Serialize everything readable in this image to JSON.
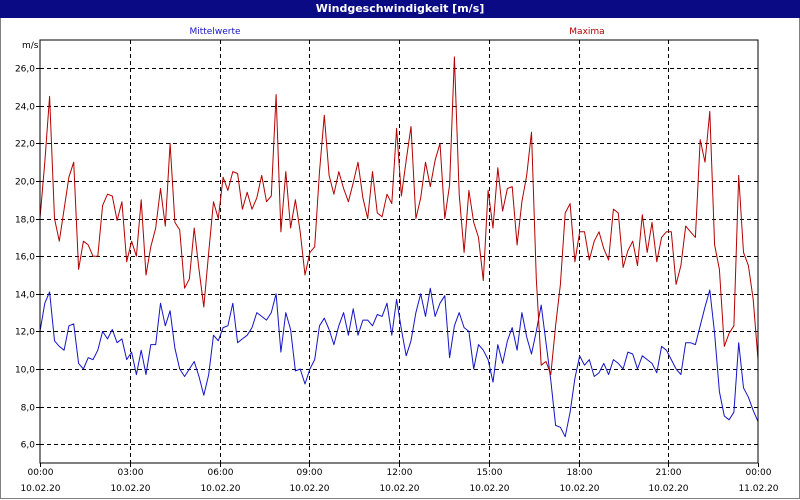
{
  "window": {
    "title": "Windgeschwindigkeit [m/s]"
  },
  "colors": {
    "mean": "#1414c8",
    "max": "#b40000",
    "title_bg": "#0a0a84",
    "grid": "#000000"
  },
  "chart_data": {
    "type": "line",
    "title": "Windgeschwindigkeit [m/s]",
    "ylabel": "m/s",
    "ylim": [
      5.0,
      27.5
    ],
    "yticks": [
      {
        "v": 6,
        "label": "6,0"
      },
      {
        "v": 8,
        "label": "8,0"
      },
      {
        "v": 10,
        "label": "10,0"
      },
      {
        "v": 12,
        "label": "12,0"
      },
      {
        "v": 14,
        "label": "14,0"
      },
      {
        "v": 16,
        "label": "16,0"
      },
      {
        "v": 18,
        "label": "18,0"
      },
      {
        "v": 20,
        "label": "20,0"
      },
      {
        "v": 22,
        "label": "22,0"
      },
      {
        "v": 24,
        "label": "24,0"
      },
      {
        "v": 26,
        "label": "26,0"
      }
    ],
    "xlim": [
      0,
      24
    ],
    "xticks": [
      {
        "v": 0,
        "time": "00:00",
        "date": "10.02.20"
      },
      {
        "v": 3,
        "time": "03:00",
        "date": "10.02.20"
      },
      {
        "v": 6,
        "time": "06:00",
        "date": "10.02.20"
      },
      {
        "v": 9,
        "time": "09:00",
        "date": "10.02.20"
      },
      {
        "v": 12,
        "time": "12:00",
        "date": "10.02.20"
      },
      {
        "v": 15,
        "time": "15:00",
        "date": "10.02.20"
      },
      {
        "v": 18,
        "time": "18:00",
        "date": "10.02.20"
      },
      {
        "v": 21,
        "time": "21:00",
        "date": "10.02.20"
      },
      {
        "v": 24,
        "time": "00:00",
        "date": "11.02.20"
      }
    ],
    "grid": true,
    "series": [
      {
        "name": "Mittelwerte",
        "color": "#1414c8",
        "values": [
          12.0,
          13.5,
          14.1,
          11.5,
          11.2,
          11.0,
          12.3,
          12.4,
          10.3,
          10.0,
          10.6,
          10.5,
          11.0,
          12.0,
          11.6,
          12.1,
          11.4,
          11.6,
          10.5,
          10.9,
          9.7,
          11.0,
          9.7,
          11.3,
          11.3,
          13.5,
          12.3,
          13.1,
          11.1,
          10.0,
          9.6,
          10.0,
          10.4,
          9.6,
          8.6,
          9.7,
          11.8,
          11.5,
          12.2,
          12.3,
          13.5,
          11.4,
          11.6,
          11.8,
          12.2,
          13.0,
          12.8,
          12.6,
          13.0,
          14.0,
          10.9,
          13.0,
          12.1,
          9.9,
          10.0,
          9.2,
          10.0,
          10.5,
          12.3,
          12.7,
          12.1,
          11.3,
          12.3,
          13.0,
          11.8,
          13.2,
          11.8,
          12.6,
          12.6,
          12.3,
          12.9,
          12.8,
          13.5,
          11.8,
          13.7,
          12.1,
          10.7,
          11.5,
          13.0,
          14.0,
          12.8,
          14.3,
          12.8,
          13.5,
          13.9,
          10.6,
          12.3,
          13.0,
          12.2,
          12.0,
          10.0,
          11.3,
          11.0,
          10.5,
          9.3,
          11.3,
          10.3,
          11.5,
          12.2,
          11.0,
          13.0,
          11.7,
          10.8,
          12.0,
          13.4,
          11.4,
          9.4,
          7.0,
          6.9,
          6.4,
          7.7,
          9.5,
          10.7,
          10.2,
          10.5,
          9.6,
          9.8,
          10.3,
          9.7,
          10.5,
          10.3,
          10.0,
          10.9,
          10.8,
          10.0,
          10.7,
          10.5,
          10.3,
          9.8,
          11.2,
          11.0,
          10.5,
          10.0,
          9.7,
          11.4,
          11.4,
          11.3,
          12.3,
          13.3,
          14.2,
          11.9,
          8.8,
          7.5,
          7.3,
          7.7,
          11.4,
          9.0,
          8.5,
          7.8,
          7.2
        ]
      },
      {
        "name": "Maxima",
        "color": "#b40000",
        "values": [
          18.0,
          21.0,
          24.5,
          18.0,
          16.8,
          18.5,
          20.2,
          21.0,
          15.3,
          16.8,
          16.6,
          16.0,
          16.0,
          18.7,
          19.3,
          19.2,
          17.9,
          18.9,
          15.7,
          16.8,
          16.0,
          19.0,
          15.0,
          16.5,
          17.5,
          19.6,
          17.6,
          22.0,
          17.8,
          17.4,
          14.3,
          14.8,
          17.5,
          15.3,
          13.3,
          16.2,
          18.9,
          18.0,
          20.2,
          19.5,
          20.5,
          20.4,
          18.5,
          19.4,
          18.5,
          19.1,
          20.3,
          18.9,
          19.2,
          24.6,
          17.3,
          20.5,
          17.5,
          19.0,
          17.3,
          15.0,
          16.2,
          16.5,
          20.5,
          23.5,
          20.3,
          19.3,
          20.5,
          19.6,
          18.9,
          19.9,
          21.0,
          19.1,
          18.0,
          20.5,
          18.3,
          18.1,
          19.3,
          18.8,
          22.8,
          19.2,
          21.1,
          22.9,
          18.0,
          19.1,
          21.0,
          19.7,
          21.1,
          22.0,
          18.0,
          19.8,
          26.6,
          19.3,
          16.2,
          19.5,
          17.8,
          17.0,
          14.7,
          19.5,
          17.5,
          20.7,
          18.4,
          19.6,
          19.7,
          16.6,
          18.9,
          20.3,
          22.6,
          14.8,
          10.2,
          10.4,
          9.7,
          12.3,
          14.5,
          18.3,
          18.8,
          15.7,
          17.3,
          17.3,
          15.8,
          16.8,
          17.3,
          16.4,
          15.8,
          18.5,
          18.3,
          15.4,
          16.3,
          16.8,
          15.5,
          18.2,
          16.2,
          17.8,
          15.7,
          17.0,
          17.3,
          17.3,
          14.5,
          15.5,
          17.6,
          17.3,
          17.0,
          22.2,
          21.0,
          23.7,
          16.6,
          15.3,
          11.2,
          11.9,
          12.3,
          20.3,
          16.2,
          15.5,
          13.7,
          10.5
        ]
      }
    ]
  }
}
